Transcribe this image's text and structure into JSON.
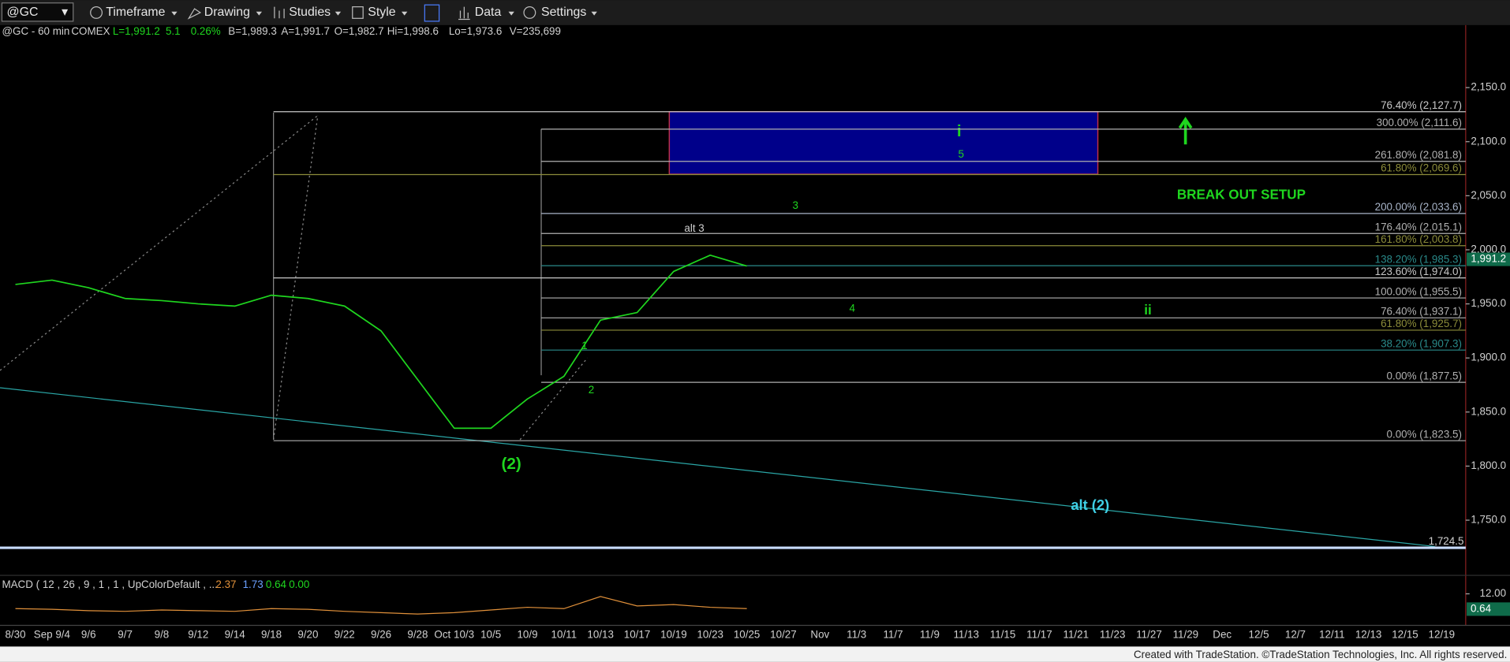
{
  "toolbar": {
    "symbol": "@GC",
    "items": [
      "Timeframe",
      "Drawing",
      "Studies",
      "Style",
      "Data",
      "Settings"
    ]
  },
  "header": {
    "symbol": "@GC - 60 min",
    "exchange": "COMEX",
    "last": "L=1,991.2",
    "change": "5.1",
    "change_pct": "0.26%",
    "bid": "B=1,989.3",
    "ask": "A=1,991.7",
    "open": "O=1,982.7",
    "high": "Hi=1,998.6",
    "low": "Lo=1,973.6",
    "volume": "V=235,699"
  },
  "chart_data": {
    "type": "line",
    "categories": [
      "8/30",
      "Sep 9/4",
      "9/6",
      "9/7",
      "9/8",
      "9/12",
      "9/14",
      "9/18",
      "9/20",
      "9/22",
      "9/26",
      "9/28",
      "Oct 10/3",
      "10/5",
      "10/9",
      "10/11",
      "10/13",
      "10/17",
      "10/19",
      "10/23",
      "10/25",
      "10/27",
      "Nov",
      "11/3",
      "11/7",
      "11/9",
      "11/13",
      "11/15",
      "11/17",
      "11/21",
      "11/23",
      "11/27",
      "11/29",
      "Dec",
      "12/5",
      "12/7",
      "12/11",
      "12/13",
      "12/15",
      "12/19"
    ],
    "series": [
      {
        "name": "@GC",
        "color": "#1fd61f",
        "values": [
          1968,
          1972,
          1965,
          1955,
          1953,
          1950,
          1948,
          1958,
          1955,
          1948,
          1925,
          1880,
          1835,
          1835,
          1862,
          1883,
          1935,
          1942,
          1980,
          1995,
          1985,
          null,
          null,
          null,
          null,
          null,
          null,
          null,
          null,
          null,
          null,
          null,
          null,
          null,
          null,
          null,
          null,
          null,
          null,
          null
        ]
      }
    ],
    "ylim": [
      1715,
      2207.8
    ],
    "yticks": [
      {
        "value": 2150,
        "label": "2,150.0"
      },
      {
        "value": 2100,
        "label": "2,100.0"
      },
      {
        "value": 2050,
        "label": "2,050.0"
      },
      {
        "value": 2000,
        "label": "2,000.0"
      },
      {
        "value": 1950,
        "label": "1,950.0"
      },
      {
        "value": 1900,
        "label": "1,900.0"
      },
      {
        "value": 1850,
        "label": "1,850.0"
      },
      {
        "value": 1800,
        "label": "1,800.0"
      },
      {
        "value": 1750,
        "label": "1,750.0"
      }
    ],
    "levels": [
      {
        "value": 2127.7,
        "label": "76.40% (2,127.7)",
        "color": "#c8c8c8"
      },
      {
        "value": 2111.6,
        "label": "300.00% (2,111.6)",
        "color": "#b0b0b0"
      },
      {
        "value": 2081.8,
        "label": "261.80% (2,081.8)",
        "color": "#b0b0b0"
      },
      {
        "value": 2069.6,
        "label": "61.80% (2,069.6)",
        "color": "#8c8c3a"
      },
      {
        "value": 2033.6,
        "label": "200.00% (2,033.6)",
        "color": "#a8b4c8"
      },
      {
        "value": 2015.1,
        "label": "176.40% (2,015.1)",
        "color": "#b0b0b0"
      },
      {
        "value": 2003.8,
        "label": "161.80% (2,003.8)",
        "color": "#8c8c3a"
      },
      {
        "value": 1985.3,
        "label": "138.20% (1,985.3)",
        "color": "#2a8a8a"
      },
      {
        "value": 1974.0,
        "label": "123.60% (1,974.0)",
        "color": "#c8c8c8"
      },
      {
        "value": 1955.5,
        "label": "100.00% (1,955.5)",
        "color": "#b0b0b0"
      },
      {
        "value": 1937.1,
        "label": "76.40% (1,937.1)",
        "color": "#b0b0b0"
      },
      {
        "value": 1925.7,
        "label": "61.80% (1,925.7)",
        "color": "#8c8c3a"
      },
      {
        "value": 1907.3,
        "label": "38.20% (1,907.3)",
        "color": "#2a8a8a"
      },
      {
        "value": 1877.5,
        "label": "0.00% (1,877.5)",
        "color": "#b0b0b0"
      },
      {
        "value": 1823.5,
        "label": "0.00% (1,823.5)",
        "color": "#b0b0b0"
      }
    ],
    "last_price": {
      "value": 1991.2,
      "label": "1,991.2"
    },
    "support": {
      "value": 1724.5,
      "label": "1,724.5"
    },
    "annotations": {
      "wave_i": "i",
      "wave_5": "5",
      "wave_3": "3",
      "alt_3": "alt 3",
      "wave_1": "1",
      "wave_2": "2",
      "wave_4": "4",
      "wave_ii": "ii",
      "wave_2_major": "(2)",
      "alt_2": "alt (2)",
      "setup": "BREAK OUT SETUP"
    },
    "macd": {
      "title": "MACD ( 12 , 26 , 9 , 1 , 1 , UpColorDefault , ...",
      "readings": [
        "2.37",
        "1.73",
        "0.64",
        "0.00"
      ],
      "values": [
        1,
        0.5,
        -0.5,
        -1,
        0,
        -0.5,
        -1,
        1,
        0.5,
        -1,
        -2,
        -3,
        -2,
        0,
        2,
        1,
        10,
        3,
        4,
        2,
        1,
        null,
        null,
        null,
        null,
        null,
        null,
        null,
        null,
        null,
        null,
        null,
        null,
        null,
        null,
        null,
        null,
        null,
        null,
        null
      ],
      "ylim": [
        -10,
        24.3
      ],
      "yticks": [
        {
          "value": 12,
          "label": "12.00"
        }
      ],
      "current": {
        "value": 0.64,
        "label": "0.64"
      }
    }
  },
  "footer": "Created with TradeStation. ©TradeStation Technologies, Inc. All rights reserved."
}
